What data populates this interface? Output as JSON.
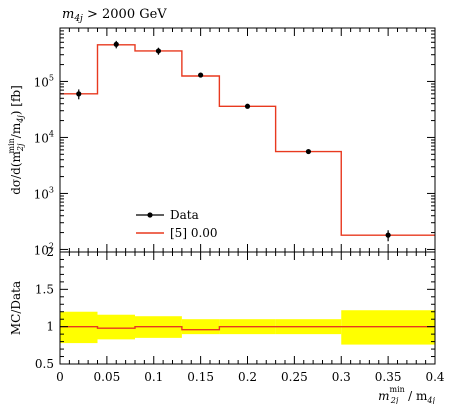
{
  "chart_data": [
    {
      "type": "line",
      "title": "m_4j > 2000 GeV",
      "xlabel": "m_2j^min / m_4j",
      "ylabel": "dσ/d(m_2j^min/m_4j) [fb]",
      "yscale": "log",
      "xlim": [
        0,
        0.4
      ],
      "ylim": [
        90,
        900000
      ],
      "legend_position": "bottom-left",
      "grid": false,
      "series": [
        {
          "name": "Data",
          "style": "points",
          "color": "#000000",
          "x": [
            0.02,
            0.06,
            0.105,
            0.15,
            0.2,
            0.265,
            0.35
          ],
          "y": [
            60000,
            460000,
            350000,
            130000,
            36000,
            5600,
            180
          ],
          "yerr": [
            12000,
            70000,
            50000,
            12000,
            3000,
            400,
            40
          ]
        },
        {
          "name": "[5] 0.00",
          "style": "step",
          "color": "#e8391f",
          "bin_edges": [
            0,
            0.04,
            0.08,
            0.13,
            0.17,
            0.23,
            0.3,
            0.4
          ],
          "y": [
            60000,
            450000,
            350000,
            125000,
            36000,
            5600,
            180
          ]
        }
      ]
    },
    {
      "type": "line",
      "ylabel": "MC/Data",
      "xlabel": "m_2j^min / m_4j",
      "xlim": [
        0,
        0.4
      ],
      "ylim": [
        0.5,
        2
      ],
      "grid": false,
      "series": [
        {
          "name": "uncertainty band",
          "style": "band",
          "color": "#ffff00",
          "bin_edges": [
            0,
            0.04,
            0.08,
            0.13,
            0.17,
            0.23,
            0.3,
            0.4
          ],
          "low": [
            0.78,
            0.83,
            0.85,
            0.9,
            0.9,
            0.9,
            0.76
          ],
          "high": [
            1.2,
            1.16,
            1.14,
            1.1,
            1.1,
            1.1,
            1.22
          ]
        },
        {
          "name": "ratio",
          "style": "step",
          "color": "#e8391f",
          "bin_edges": [
            0,
            0.04,
            0.08,
            0.13,
            0.17,
            0.23,
            0.3,
            0.4
          ],
          "y": [
            1,
            0.98,
            1,
            0.96,
            1,
            1,
            1
          ]
        }
      ]
    }
  ],
  "labels": {
    "title_main": "m",
    "title_sub": "4j",
    "title_rest": " > 2000 GeV",
    "ylabel_main": "dσ/d(m",
    "ylabel_sub": "2j",
    "ylabel_sup": "min",
    "ylabel_rest": "/m",
    "ylabel_sub2": "4j",
    "ylabel_tail": ") [fb]",
    "xlabel_main": "m",
    "xlabel_sup": "min",
    "xlabel_sub": "2j",
    "xlabel_rest": " / m",
    "xlabel_sub2": "4j",
    "ratio_ylabel": "MC/Data",
    "legend_data": "Data",
    "legend_mc": "[5] 0.00"
  },
  "ticks": {
    "x": [
      "0",
      "0.05",
      "0.1",
      "0.15",
      "0.2",
      "0.25",
      "0.3",
      "0.35",
      "0.4"
    ],
    "y_log": [
      {
        "base": "10",
        "exp": "2"
      },
      {
        "base": "10",
        "exp": "3"
      },
      {
        "base": "10",
        "exp": "4"
      },
      {
        "base": "10",
        "exp": "5"
      }
    ],
    "ratio_y": [
      "0.5",
      "1",
      "1.5",
      "2"
    ]
  }
}
